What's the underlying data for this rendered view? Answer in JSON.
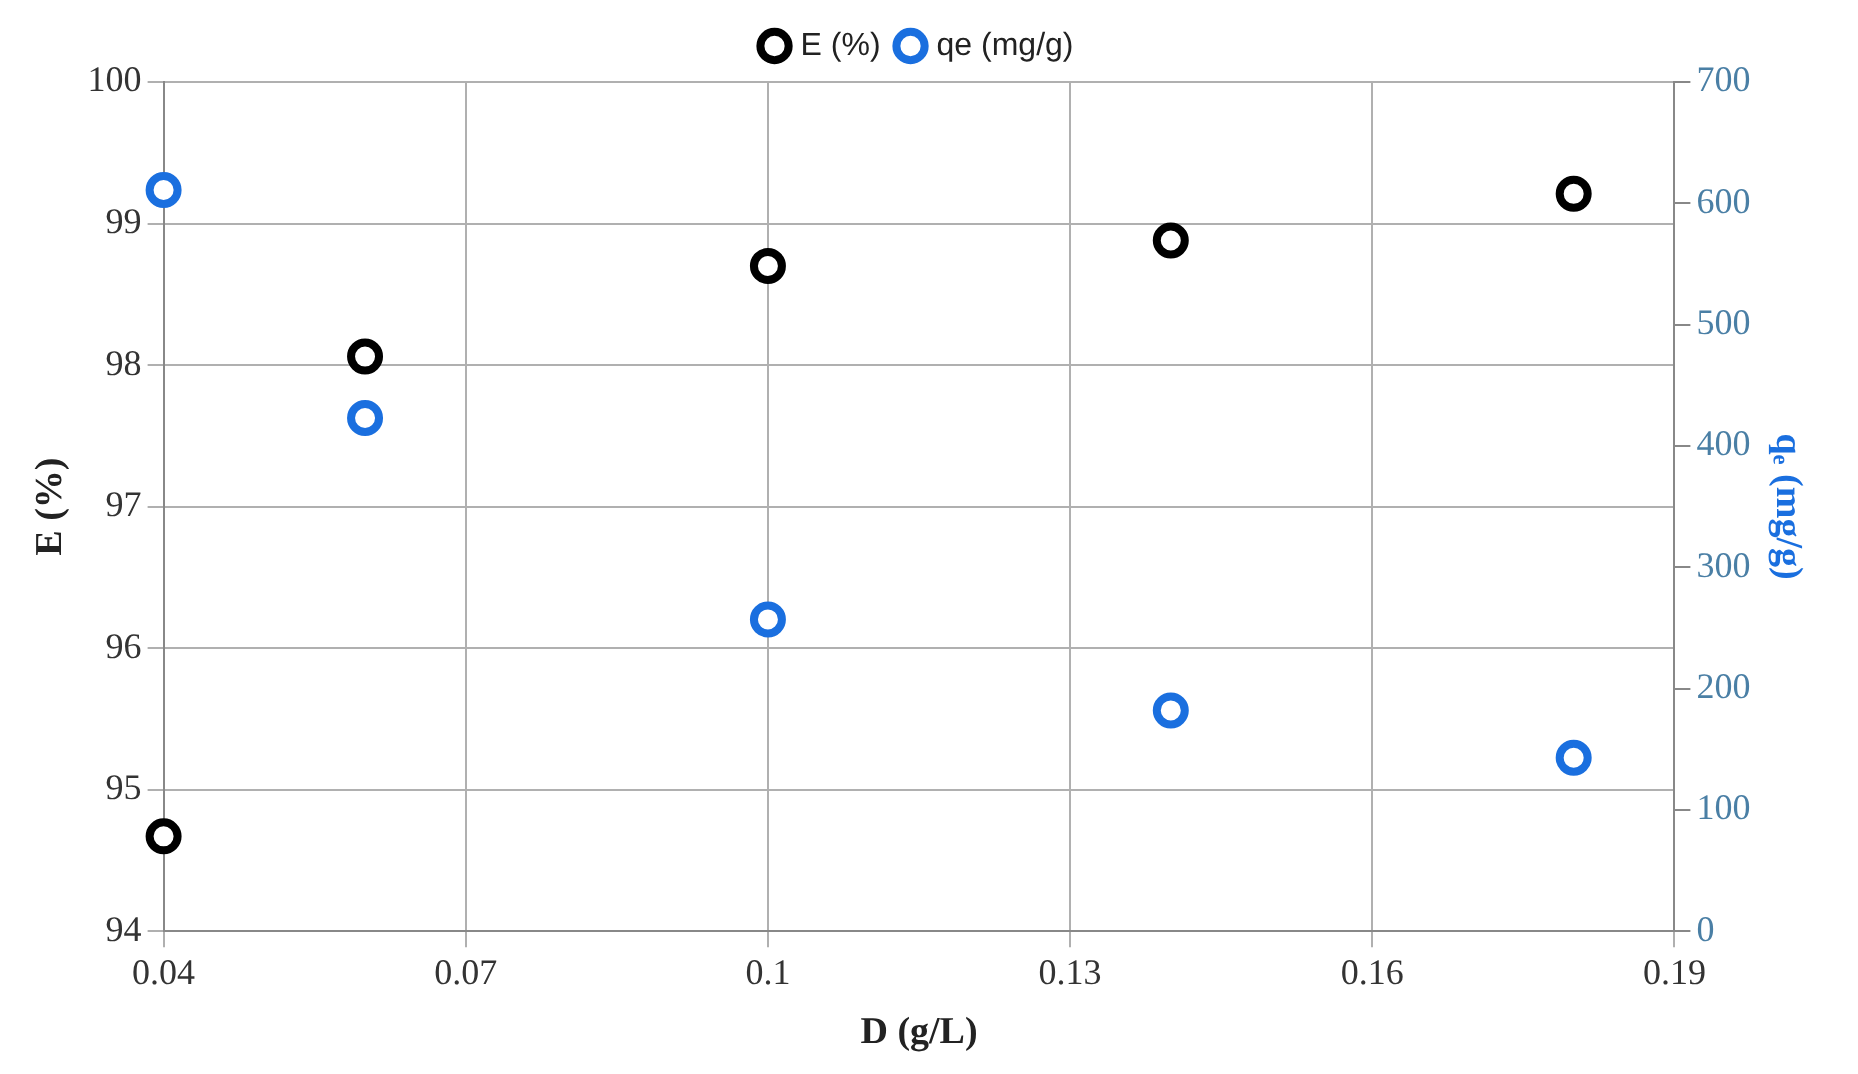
{
  "chart_data": {
    "type": "scatter",
    "xlabel": "D (g/L)",
    "ylabel": "E (%)",
    "y2label": "qₑ (mg/g)",
    "x": [
      0.04,
      0.06,
      0.1,
      0.14,
      0.18
    ],
    "series": [
      {
        "name": "E (%)",
        "color": "#000000",
        "values": [
          94.67,
          98.06,
          98.7,
          98.88,
          99.21
        ]
      },
      {
        "name": "qe (mg/g)",
        "color": "#1a6fdf",
        "axis": "y2",
        "values": [
          611,
          423,
          257,
          182,
          143
        ]
      }
    ],
    "xlim": [
      0.04,
      0.19
    ],
    "xticks": [
      0.04,
      0.07,
      0.1,
      0.13,
      0.16,
      0.19
    ],
    "ylim": [
      94,
      100
    ],
    "yticks": [
      94,
      95,
      96,
      97,
      98,
      99,
      100
    ],
    "y2lim": [
      0,
      700
    ],
    "y2ticks": [
      0,
      100,
      200,
      300,
      400,
      500,
      600,
      700
    ],
    "grid": true,
    "legend": "top",
    "marker": "circle"
  }
}
